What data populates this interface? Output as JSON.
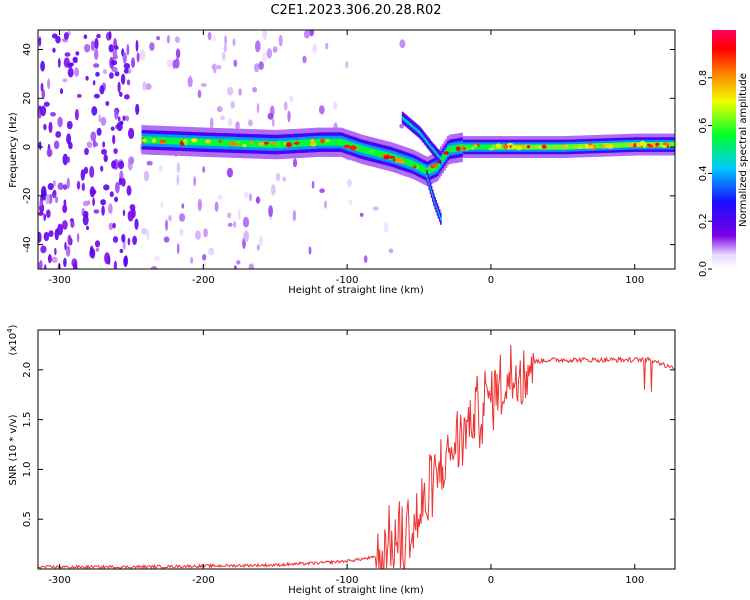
{
  "title": "C2E1.2023.306.20.28.R02",
  "chart_data": [
    {
      "type": "heatmap",
      "name": "spectrogram",
      "xlabel": "Height of straight line (km)",
      "ylabel": "Frequency (Hz)",
      "xlim": [
        -315,
        128
      ],
      "ylim": [
        -50,
        48
      ],
      "xticks": [
        -300,
        -200,
        -100,
        0,
        100
      ],
      "yticks": [
        -40,
        -20,
        0,
        20,
        40
      ],
      "colorbar": {
        "label": "Normalized spectral amplitude",
        "range": [
          0,
          1
        ],
        "ticks": [
          0.0,
          0.2,
          0.4,
          0.6,
          0.8
        ],
        "colors": [
          "#ffffff",
          "#7a00e6",
          "#1a0dff",
          "#00c8ff",
          "#00ff2a",
          "#f0ff00",
          "#ff8000",
          "#ff0000",
          "#ff0060"
        ]
      },
      "trace": {
        "x": [
          -243,
          -200,
          -150,
          -120,
          -105,
          -90,
          -70,
          -55,
          -45,
          -38,
          -30,
          -20,
          0,
          50,
          100,
          128
        ],
        "y": [
          3,
          2,
          1,
          2,
          2,
          -1,
          -4,
          -7,
          -10,
          -8,
          -1,
          0,
          0,
          0,
          1,
          1
        ]
      },
      "branches": [
        {
          "x": [
            -62,
            -50,
            -42,
            -35
          ],
          "y": [
            12,
            6,
            0,
            -5
          ]
        },
        {
          "x": [
            -45,
            -40,
            -35
          ],
          "y": [
            -12,
            -22,
            -30
          ]
        }
      ]
    },
    {
      "type": "line",
      "name": "snr",
      "xlabel": "Height of straight line (km)",
      "ylabel": "SNR (10 * v/v)",
      "yunit": "(x10",
      "yunit_exp": "4",
      "yunit_close": ")",
      "xlim": [
        -315,
        128
      ],
      "ylim": [
        0,
        2.4
      ],
      "xticks": [
        -300,
        -200,
        -100,
        0,
        100
      ],
      "yticks": [
        0.5,
        1.0,
        1.5,
        2.0
      ],
      "color": "#ee3333",
      "series": [
        {
          "x": [
            -315,
            -250,
            -200,
            -150,
            -120,
            -100,
            -80,
            -60,
            -50,
            -45,
            -40,
            -35,
            -30,
            -25,
            -20,
            -15,
            -10,
            -5,
            0,
            5,
            10,
            15,
            20,
            25,
            30,
            40,
            60,
            80,
            100,
            110,
            115,
            120,
            128
          ],
          "y": [
            0.02,
            0.02,
            0.03,
            0.04,
            0.06,
            0.08,
            0.12,
            0.3,
            0.5,
            0.65,
            0.8,
            1.0,
            1.15,
            1.25,
            1.35,
            1.45,
            1.55,
            1.65,
            1.75,
            1.8,
            1.85,
            1.95,
            2.0,
            2.05,
            2.08,
            2.1,
            2.1,
            2.1,
            2.1,
            2.1,
            2.09,
            2.05,
            2.03
          ]
        }
      ]
    }
  ]
}
